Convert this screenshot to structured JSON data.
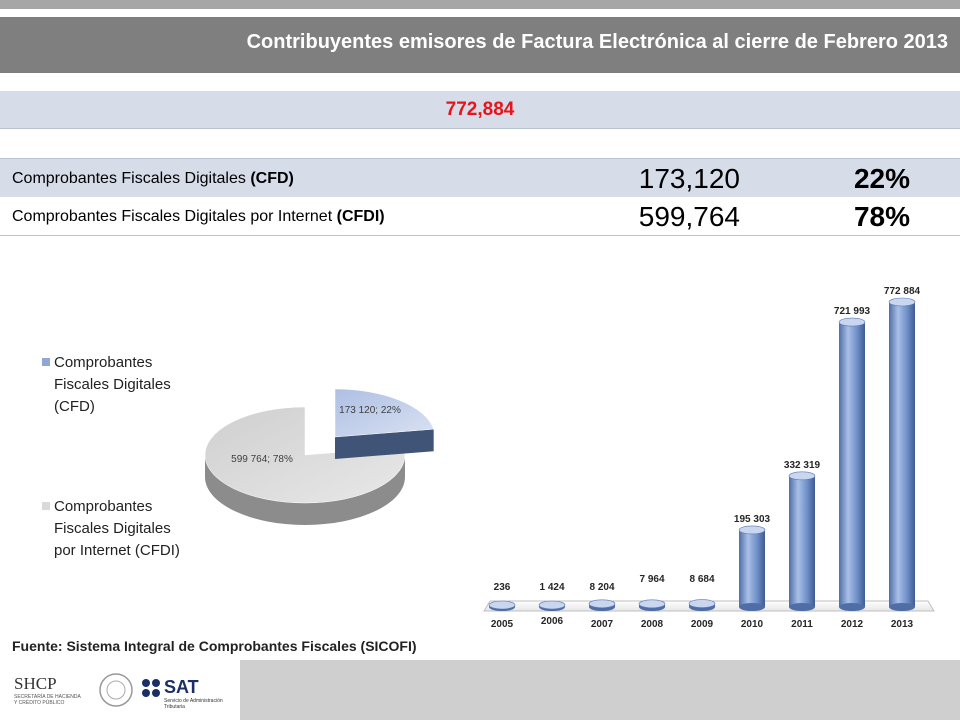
{
  "header": {
    "title": "Contribuyentes emisores de Factura Electrónica al cierre de Febrero 2013",
    "total": "772,884"
  },
  "summary": {
    "rows": [
      {
        "label": "Comprobantes Fiscales Digitales",
        "abbr": "(CFD)",
        "count": "173,120",
        "pct": "22%"
      },
      {
        "label": "Comprobantes Fiscales Digitales por Internet",
        "abbr": "(CFDI)",
        "count": "599,764",
        "pct": "78%"
      }
    ]
  },
  "legend": {
    "items": [
      {
        "label": "Comprobantes Fiscales Digitales (CFD)",
        "color": "#8fa6d6"
      },
      {
        "label": "Comprobantes Fiscales Digitales por Internet (CFDI)",
        "color": "#d9d9d9"
      }
    ]
  },
  "source": "Fuente: Sistema Integral de Comprobantes Fiscales (SICOFI)",
  "footer": {
    "shcp": "SHCP",
    "shcp_sub": "SECRETARÍA DE HACIENDA Y CRÉDITO PÚBLICO",
    "sat": "SAT",
    "sat_sub": "Servicio de Administración Tributaria"
  },
  "chart_data": [
    {
      "type": "pie",
      "categories": [
        "Comprobantes Fiscales Digitales (CFD)",
        "Comprobantes Fiscales Digitales por Internet (CFDI)"
      ],
      "values": [
        173120,
        599764
      ],
      "percent": [
        22,
        78
      ],
      "data_labels": [
        "173 120; 22%",
        "599 764; 78%"
      ],
      "colors": [
        "#8fa6d6",
        "#d9d9d9"
      ],
      "style": "3d-exploded",
      "legend": "left"
    },
    {
      "type": "bar",
      "style": "3d-cylinder",
      "categories": [
        "2005",
        "2006",
        "2007",
        "2008",
        "2009",
        "2010",
        "2011",
        "2012",
        "2013"
      ],
      "values": [
        236,
        1424,
        8204,
        7964,
        8684,
        195303,
        332319,
        721993,
        772884
      ],
      "data_labels": [
        "236",
        "1 424",
        "8 204",
        "7 964",
        "8 684",
        "195 303",
        "332 319",
        "721 993",
        "772 884"
      ],
      "color": "#6f8fc9",
      "ylim": [
        0,
        772884
      ],
      "grid": false
    }
  ]
}
